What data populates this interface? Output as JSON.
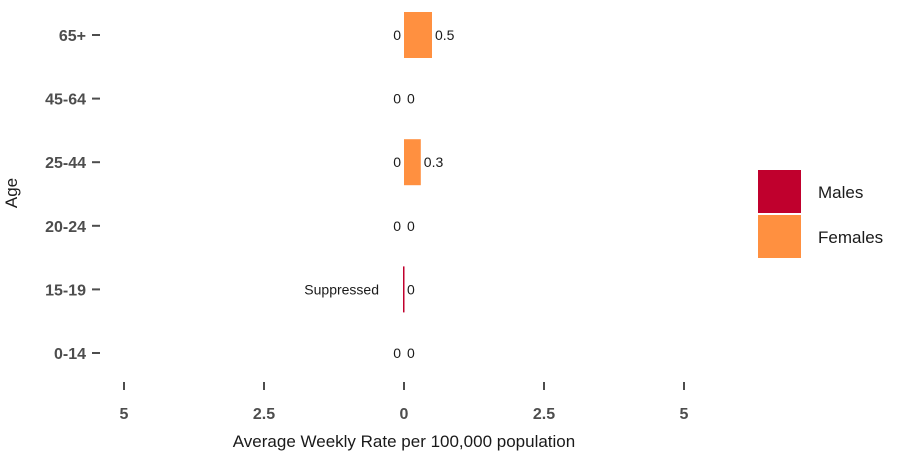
{
  "chart_data": {
    "type": "bar",
    "orientation": "horizontal-diverging",
    "title": "",
    "xlabel": "Average Weekly Rate per 100,000 population",
    "ylabel": "Age",
    "categories": [
      "0-14",
      "15-19",
      "20-24",
      "25-44",
      "45-64",
      "65+"
    ],
    "x_tick_labels": [
      "5",
      "2.5",
      "0",
      "2.5",
      "5"
    ],
    "x_tick_values": [
      -5,
      -2.5,
      0,
      2.5,
      5
    ],
    "xlim": [
      -5,
      5
    ],
    "grid": false,
    "legend_position": "right",
    "series": [
      {
        "name": "Males",
        "color": "#c0002d",
        "direction": "left",
        "values": [
          0,
          0,
          0,
          0,
          0,
          0
        ],
        "labels": [
          "0",
          "Suppressed",
          "0",
          "0",
          "0",
          "0"
        ]
      },
      {
        "name": "Females",
        "color": "#ff9040",
        "direction": "right",
        "values": [
          0,
          0,
          0,
          0.3,
          0,
          0.5
        ],
        "labels": [
          "0",
          "0",
          "0",
          "0.3",
          "0",
          "0.5"
        ]
      }
    ]
  }
}
